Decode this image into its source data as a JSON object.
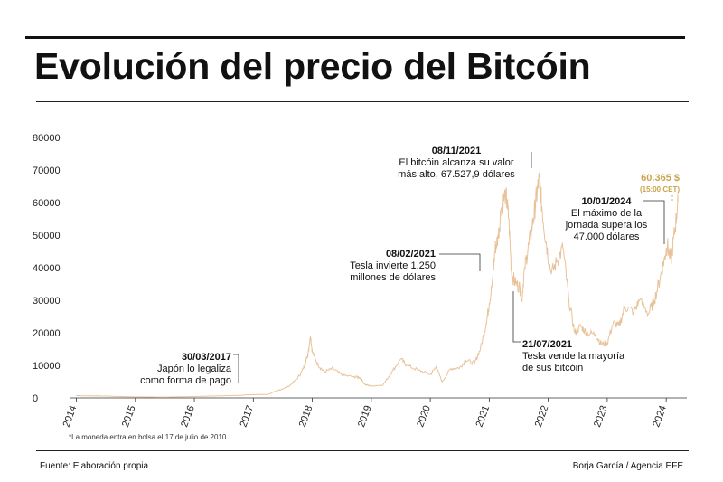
{
  "chart_data": {
    "type": "line",
    "title": "Evolución del precio del Bitcóin",
    "xlabel": "",
    "ylabel": "",
    "ylim": [
      0,
      80000
    ],
    "yticks": [
      "0",
      "10000",
      "20000",
      "30000",
      "40000",
      "50000",
      "60000",
      "70000",
      "80000"
    ],
    "xticks": [
      "2014",
      "2015",
      "2016",
      "2017",
      "2018",
      "2019",
      "2020",
      "2021",
      "2022",
      "2023",
      "2024"
    ],
    "line_color": "#e8c39a",
    "highlight_color": "#c9a44c",
    "series": [
      {
        "values": [
          [
            2014.0,
            700
          ],
          [
            2014.5,
            550
          ],
          [
            2015.0,
            300
          ],
          [
            2015.5,
            250
          ],
          [
            2016.0,
            420
          ],
          [
            2016.5,
            650
          ],
          [
            2017.0,
            1000
          ],
          [
            2017.25,
            1100
          ],
          [
            2017.45,
            2500
          ],
          [
            2017.6,
            3500
          ],
          [
            2017.75,
            6000
          ],
          [
            2017.85,
            9000
          ],
          [
            2017.92,
            13000
          ],
          [
            2017.97,
            19000
          ],
          [
            2018.0,
            14000
          ],
          [
            2018.1,
            10000
          ],
          [
            2018.2,
            8000
          ],
          [
            2018.35,
            9000
          ],
          [
            2018.5,
            7000
          ],
          [
            2018.7,
            6500
          ],
          [
            2018.8,
            6300
          ],
          [
            2018.9,
            4000
          ],
          [
            2019.0,
            3700
          ],
          [
            2019.2,
            4000
          ],
          [
            2019.35,
            8000
          ],
          [
            2019.5,
            12000
          ],
          [
            2019.6,
            10000
          ],
          [
            2019.8,
            8500
          ],
          [
            2020.0,
            7200
          ],
          [
            2020.1,
            9500
          ],
          [
            2020.2,
            5000
          ],
          [
            2020.35,
            9000
          ],
          [
            2020.5,
            9300
          ],
          [
            2020.6,
            11500
          ],
          [
            2020.75,
            10700
          ],
          [
            2020.85,
            15000
          ],
          [
            2020.95,
            23000
          ],
          [
            2021.0,
            29000
          ],
          [
            2021.05,
            35000
          ],
          [
            2021.1,
            46000
          ],
          [
            2021.15,
            49000
          ],
          [
            2021.2,
            58000
          ],
          [
            2021.28,
            63000
          ],
          [
            2021.33,
            55000
          ],
          [
            2021.38,
            38000
          ],
          [
            2021.45,
            35000
          ],
          [
            2021.52,
            34000
          ],
          [
            2021.55,
            30000
          ],
          [
            2021.6,
            40000
          ],
          [
            2021.67,
            47000
          ],
          [
            2021.75,
            55000
          ],
          [
            2021.8,
            62000
          ],
          [
            2021.85,
            67500
          ],
          [
            2021.9,
            57000
          ],
          [
            2021.97,
            47000
          ],
          [
            2022.05,
            38000
          ],
          [
            2022.15,
            42000
          ],
          [
            2022.25,
            46000
          ],
          [
            2022.35,
            30000
          ],
          [
            2022.45,
            20000
          ],
          [
            2022.55,
            22000
          ],
          [
            2022.65,
            20000
          ],
          [
            2022.8,
            19500
          ],
          [
            2022.9,
            16500
          ],
          [
            2023.0,
            16800
          ],
          [
            2023.1,
            23000
          ],
          [
            2023.2,
            22000
          ],
          [
            2023.3,
            28000
          ],
          [
            2023.45,
            26500
          ],
          [
            2023.55,
            30000
          ],
          [
            2023.7,
            26000
          ],
          [
            2023.8,
            30000
          ],
          [
            2023.9,
            37000
          ],
          [
            2023.97,
            43000
          ],
          [
            2024.02,
            47000
          ],
          [
            2024.08,
            42000
          ],
          [
            2024.15,
            52000
          ],
          [
            2024.2,
            60365
          ]
        ]
      }
    ],
    "annotations": [
      {
        "date": "30/03/2017",
        "text": [
          "Japón lo legaliza",
          "como forma de pago"
        ]
      },
      {
        "date": "08/02/2021",
        "text": [
          "Tesla invierte 1.250",
          "millones de dólares"
        ]
      },
      {
        "date": "08/11/2021",
        "text": [
          "El bitcóin alcanza su valor",
          "más alto, 67.527,9 dólares"
        ]
      },
      {
        "date": "21/07/2021",
        "text": [
          "Tesla vende la mayoría",
          "de sus bitcóin"
        ]
      },
      {
        "date": "10/01/2024",
        "text": [
          "El máximo de la",
          "jornada supera los",
          "47.000 dólares"
        ]
      }
    ],
    "current_price": {
      "value": "60.365 $",
      "note": "(15:00 CET)"
    }
  },
  "header": {
    "title": "Evolución del precio del Bitcóin"
  },
  "footer": {
    "footnote": "*La moneda entra en bolsa el 17 de julio de 2010.",
    "source": "Fuente: Elaboración propia",
    "credit": "Borja García / Agencia EFE"
  }
}
